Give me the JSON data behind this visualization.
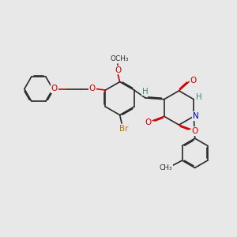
{
  "bg_color": "#e8e8e8",
  "bond_color": "#2a2a2a",
  "bond_lw": 1.2,
  "dbo": 0.042,
  "atom_colors": {
    "O": "#cc0000",
    "N": "#0000bb",
    "Br": "#bb7700",
    "H": "#3a8888",
    "C": "#2a2a2a"
  },
  "fs": 7.5,
  "fs_s": 6.5
}
